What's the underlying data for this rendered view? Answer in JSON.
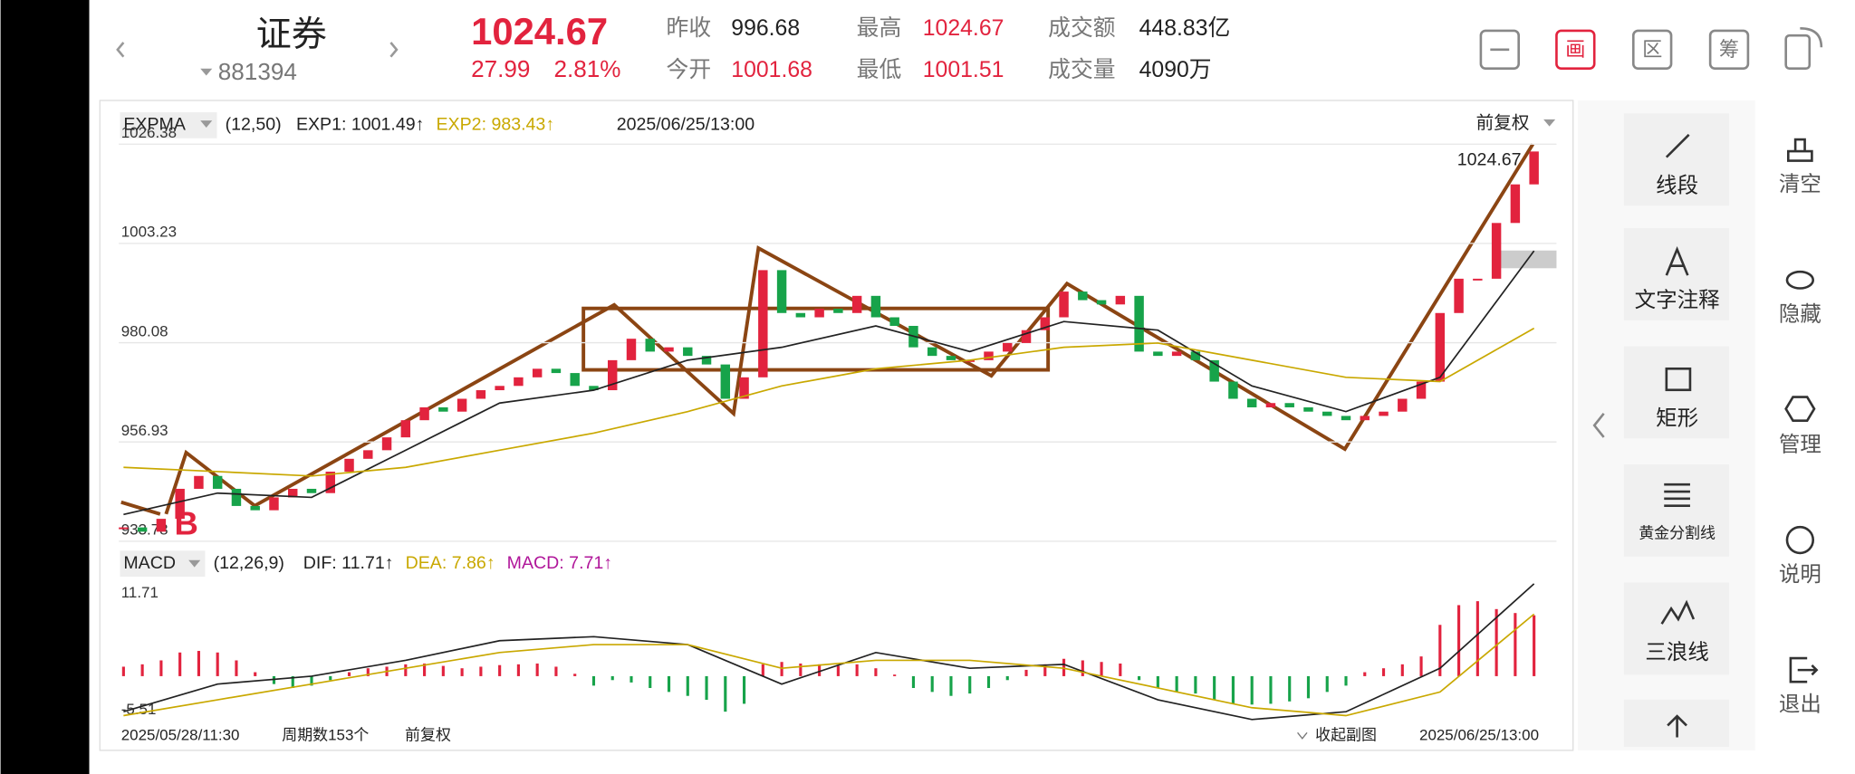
{
  "header": {
    "name": "证券",
    "code": "881394",
    "price": "1024.67",
    "change": "27.99",
    "change_pct": "2.81%",
    "stats": [
      {
        "label": "昨收",
        "value": "996.68"
      },
      {
        "label": "今开",
        "value": "1001.68"
      },
      {
        "label": "最高",
        "value": "1024.67"
      },
      {
        "label": "最低",
        "value": "1001.51"
      },
      {
        "label": "成交额",
        "value": "448.83亿"
      },
      {
        "label": "成交量",
        "value": "4090万"
      }
    ],
    "toolbar": [
      "画",
      "区",
      "筹"
    ]
  },
  "chart_data": [
    {
      "type": "candlestick",
      "indicator_label": "EXPMA",
      "params": "(12,50)",
      "date": "2025/06/25/13:00",
      "adjust": "前复权",
      "ylim": [
        933.78,
        1026.38
      ],
      "yticks": [
        933.78,
        956.93,
        980.08,
        1003.23,
        1026.38
      ],
      "grid": true,
      "up_color": "#e2233e",
      "down_color": "#17a34a",
      "values": [
        937,
        936,
        939,
        946,
        949,
        946,
        942,
        941,
        944,
        946,
        945,
        950,
        953,
        955,
        958,
        962,
        965,
        964,
        967,
        969,
        970,
        972,
        974,
        973,
        970,
        969,
        976,
        981,
        978,
        979,
        977,
        975,
        967,
        972,
        997,
        987,
        986,
        988,
        987,
        991,
        986,
        984,
        979,
        977,
        976,
        976,
        978,
        980,
        983,
        986,
        992,
        990,
        989,
        991,
        978,
        977,
        978,
        976,
        971,
        967,
        965,
        966,
        965,
        964,
        963,
        962,
        963,
        964,
        967,
        971,
        987,
        995,
        995,
        1008,
        1017,
        1024.67
      ],
      "series": [
        {
          "name": "EXP1: 1001.49↑",
          "color": "#222222",
          "values": [
            940,
            945,
            944,
            955,
            966,
            969,
            976,
            979,
            984,
            978,
            985,
            983,
            970,
            964,
            972,
            1001.49
          ]
        },
        {
          "name": "EXP2: 983.43↑",
          "color": "#c9a800",
          "values": [
            951,
            950,
            949,
            951,
            955,
            959,
            964,
            970,
            974,
            976,
            979,
            980,
            976,
            972,
            971,
            983.43
          ]
        }
      ],
      "annotations": [
        "B",
        "1024.67"
      ]
    },
    {
      "type": "bar",
      "indicator_label": "MACD",
      "params": "(12,26,9)",
      "name": "MACD: 7.71↑",
      "legend_color": "#b0169a",
      "ylim": [
        -5.51,
        11.71
      ],
      "yticks": [
        -5.51,
        11.71
      ],
      "up_color": "#e2233e",
      "down_color": "#17a34a",
      "values": [
        1.2,
        1.5,
        2.0,
        3.0,
        3.2,
        3.0,
        2.0,
        0.5,
        -1.0,
        -1.5,
        -1.2,
        -0.5,
        0.5,
        1.0,
        1.2,
        1.5,
        1.6,
        1.3,
        1.0,
        1.2,
        1.4,
        1.5,
        1.6,
        1.2,
        0.3,
        -1.2,
        -0.5,
        -0.8,
        -1.5,
        -2.0,
        -2.5,
        -3.0,
        -4.5,
        -3.5,
        1.5,
        1.8,
        1.6,
        1.5,
        1.3,
        1.5,
        1.0,
        0.2,
        -1.5,
        -2.0,
        -2.5,
        -2.2,
        -1.5,
        -0.5,
        0.8,
        1.5,
        2.2,
        2.0,
        1.8,
        1.6,
        -0.5,
        -1.5,
        -2.0,
        -2.2,
        -3.0,
        -3.5,
        -3.6,
        -3.5,
        -3.2,
        -2.8,
        -2.0,
        -1.2,
        0.5,
        1.0,
        1.5,
        2.5,
        6.5,
        9.0,
        9.5,
        8.5,
        8.0,
        7.71
      ],
      "series": [
        {
          "name": "DIF: 11.71↑",
          "color": "#222222",
          "values": [
            -4.5,
            -1,
            0,
            2,
            4.5,
            5,
            4,
            -1,
            3,
            1,
            1.5,
            -3,
            -5.5,
            -4.5,
            1,
            11.71
          ]
        },
        {
          "name": "DEA: 7.86↑",
          "color": "#c9a800",
          "values": [
            -5,
            -3,
            -1,
            1,
            3,
            4,
            4,
            1,
            2,
            2,
            1,
            -1.5,
            -4,
            -5,
            -2,
            7.86
          ]
        }
      ]
    }
  ],
  "footer": {
    "start": "2025/05/28/11:30",
    "periods": "周期数153个",
    "adjust": "前复权",
    "collapse": "收起副图",
    "end": "2025/06/25/13:00"
  },
  "tools": {
    "draw_tools": [
      "线段",
      "文字注释",
      "矩形",
      "黄金分割线",
      "三浪线"
    ],
    "actions": [
      "清空",
      "隐藏",
      "管理",
      "说明",
      "退出"
    ]
  }
}
